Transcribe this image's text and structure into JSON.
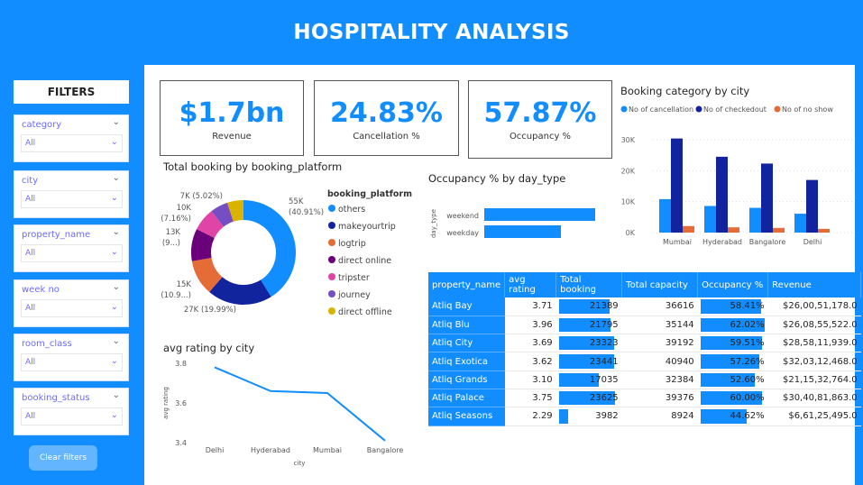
{
  "header": {
    "title": "HOSPITALITY ANALYSIS"
  },
  "filters": {
    "title": "FILTERS",
    "slicers": [
      {
        "label": "category",
        "value": "All"
      },
      {
        "label": "city",
        "value": "All"
      },
      {
        "label": "property_name",
        "value": "All"
      },
      {
        "label": "week no",
        "value": "All"
      },
      {
        "label": "room_class",
        "value": "All"
      },
      {
        "label": "booking_status",
        "value": "All"
      }
    ],
    "clear_label": "Clear filters"
  },
  "kpis": [
    {
      "value": "$1.7bn",
      "label": "Revenue"
    },
    {
      "value": "24.83%",
      "label": "Cancellation %"
    },
    {
      "value": "57.87%",
      "label": "Occupancy %"
    }
  ],
  "colors": {
    "accent": "#118DFF",
    "navy": "#12239E",
    "orange": "#E66C37"
  },
  "chart_data": [
    {
      "type": "pie",
      "title": "Total booking by booking_platform",
      "legend_title": "booking_platform",
      "slices": [
        {
          "name": "others",
          "value": 55,
          "label": "55K",
          "pct_label": "(40.91%)",
          "color": "#118DFF"
        },
        {
          "name": "makeyourtrip",
          "value": 27,
          "label": "27K (19.99%)",
          "pct_label": "",
          "color": "#12239E"
        },
        {
          "name": "logtrip",
          "value": 14.7,
          "label": "15K",
          "pct_label": "(10.9...)",
          "color": "#E66C37"
        },
        {
          "name": "direct online",
          "value": 13.4,
          "label": "13K",
          "pct_label": "(9...)",
          "color": "#6B007B"
        },
        {
          "name": "tripster",
          "value": 9.6,
          "label": "10K",
          "pct_label": "(7.16%)",
          "color": "#E044A7"
        },
        {
          "name": "journey",
          "value": 7.3,
          "label": "",
          "pct_label": "",
          "color": "#744EC2"
        },
        {
          "name": "direct offline",
          "value": 6.7,
          "label": "7K (5.02%)",
          "pct_label": "",
          "color": "#D9B300"
        }
      ]
    },
    {
      "type": "bar",
      "title": "Occupancy % by day_type",
      "ylabel": "day_type",
      "categories": [
        "weekend",
        "weekday"
      ],
      "values": [
        62.8,
        43.4
      ]
    },
    {
      "type": "bar",
      "title": "Booking category by city",
      "categories": [
        "Mumbai",
        "Hyderabad",
        "Bangalore",
        "Delhi"
      ],
      "series": [
        {
          "name": "No of cancellation",
          "values": [
            10800,
            8600,
            8000,
            6100
          ],
          "color": "#118DFF"
        },
        {
          "name": "No of checkedout",
          "values": [
            30400,
            24500,
            22300,
            17000
          ],
          "color": "#12239E"
        },
        {
          "name": "No of no show",
          "values": [
            2100,
            1700,
            1500,
            1200
          ],
          "color": "#E66C37"
        }
      ],
      "yticks": [
        "0K",
        "10K",
        "20K",
        "30K"
      ],
      "ylim": [
        0,
        30000
      ]
    },
    {
      "type": "line",
      "title": "avg rating by city",
      "xlabel": "city",
      "ylabel": "avg rating",
      "categories": [
        "Delhi",
        "Hyderabad",
        "Mumbai",
        "Bangalore"
      ],
      "values": [
        3.78,
        3.66,
        3.65,
        3.41
      ],
      "yticks": [
        "3.4",
        "3.6",
        "3.8"
      ],
      "ylim": [
        3.4,
        3.8
      ]
    }
  ],
  "table": {
    "columns": [
      "property_name",
      "avg rating",
      "Total booking",
      "Total capacity",
      "Occupancy %",
      "Revenue"
    ],
    "rows": [
      [
        "Atliq Bay",
        "3.71",
        "21389",
        "36616",
        "58.41%",
        "$26,00,51,178.0"
      ],
      [
        "Atliq Blu",
        "3.96",
        "21795",
        "35144",
        "62.02%",
        "$26,08,55,522.0"
      ],
      [
        "Atliq City",
        "3.69",
        "23323",
        "39192",
        "59.51%",
        "$28,58,11,939.0"
      ],
      [
        "Atliq Exotica",
        "3.62",
        "23441",
        "40940",
        "57.26%",
        "$32,03,12,468.0"
      ],
      [
        "Atliq Grands",
        "3.10",
        "17035",
        "32384",
        "52.60%",
        "$21,15,32,764.0"
      ],
      [
        "Atliq Palace",
        "3.75",
        "23625",
        "39376",
        "60.00%",
        "$30,40,81,863.0"
      ],
      [
        "Atliq Seasons",
        "2.29",
        "3982",
        "8924",
        "44.62%",
        "$6,61,25,495.0"
      ]
    ]
  }
}
